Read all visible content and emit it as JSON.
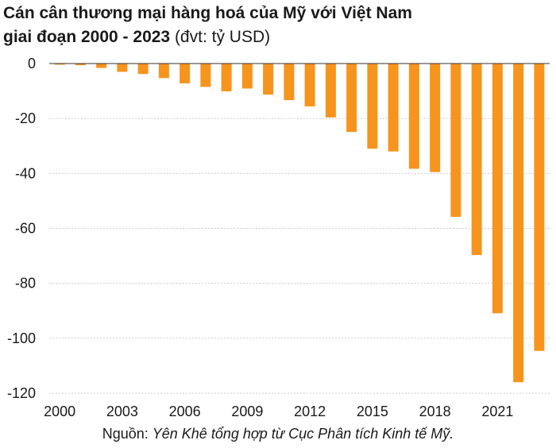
{
  "title": {
    "line1": "Cán cân thương mại hàng hoá của Mỹ với Việt Nam",
    "line2_bold": "giai đoạn 2000 - 2023",
    "line2_unit": " (đvt: tỷ USD)"
  },
  "source": {
    "prefix": "Nguồn: ",
    "text": "Yên Khê tổng hợp từ Cục Phân tích Kinh tế Mỹ."
  },
  "colors": {
    "bar": "#f7941d",
    "grid": "#cccccc",
    "axis": "#333333"
  },
  "chart_data": {
    "type": "bar",
    "categories": [
      "2000",
      "2001",
      "2002",
      "2003",
      "2004",
      "2005",
      "2006",
      "2007",
      "2008",
      "2009",
      "2010",
      "2011",
      "2012",
      "2013",
      "2014",
      "2015",
      "2016",
      "2017",
      "2018",
      "2019",
      "2020",
      "2021",
      "2022",
      "2023"
    ],
    "values": [
      -0.4,
      -0.6,
      -1.6,
      -3.0,
      -3.8,
      -5.3,
      -7.2,
      -8.5,
      -10.1,
      -9.1,
      -11.3,
      -13.3,
      -15.6,
      -19.6,
      -24.9,
      -31.0,
      -32.0,
      -38.3,
      -39.5,
      -55.8,
      -69.7,
      -90.9,
      -116.0,
      -104.6
    ],
    "xticks": [
      "2000",
      "2003",
      "2006",
      "2009",
      "2012",
      "2015",
      "2018",
      "2021"
    ],
    "yticks": [
      "0",
      "-20",
      "-40",
      "-60",
      "-80",
      "-100",
      "-120"
    ],
    "ylim": [
      -120,
      0
    ],
    "grid": true
  }
}
